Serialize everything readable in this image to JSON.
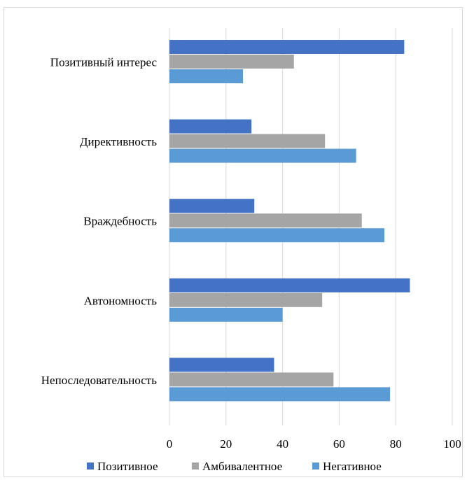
{
  "chart_data": {
    "type": "bar",
    "orientation": "horizontal",
    "categories": [
      "Позитивный интерес",
      "Директивность",
      "Враждебность",
      "Автономность",
      "Непоследовательность"
    ],
    "series": [
      {
        "name": "Позитивное",
        "color": "#4472c4",
        "values": [
          83,
          29,
          30,
          85,
          37
        ]
      },
      {
        "name": "Амбивалентное",
        "color": "#a5a5a5",
        "values": [
          44,
          55,
          68,
          54,
          58
        ]
      },
      {
        "name": "Негативное",
        "color": "#5b9bd5",
        "values": [
          26,
          66,
          76,
          40,
          78
        ]
      }
    ],
    "xlim": [
      0,
      100
    ],
    "xticks": [
      "0",
      "20",
      "40",
      "60",
      "80",
      "100"
    ],
    "grid": true,
    "legend": "bottom"
  }
}
